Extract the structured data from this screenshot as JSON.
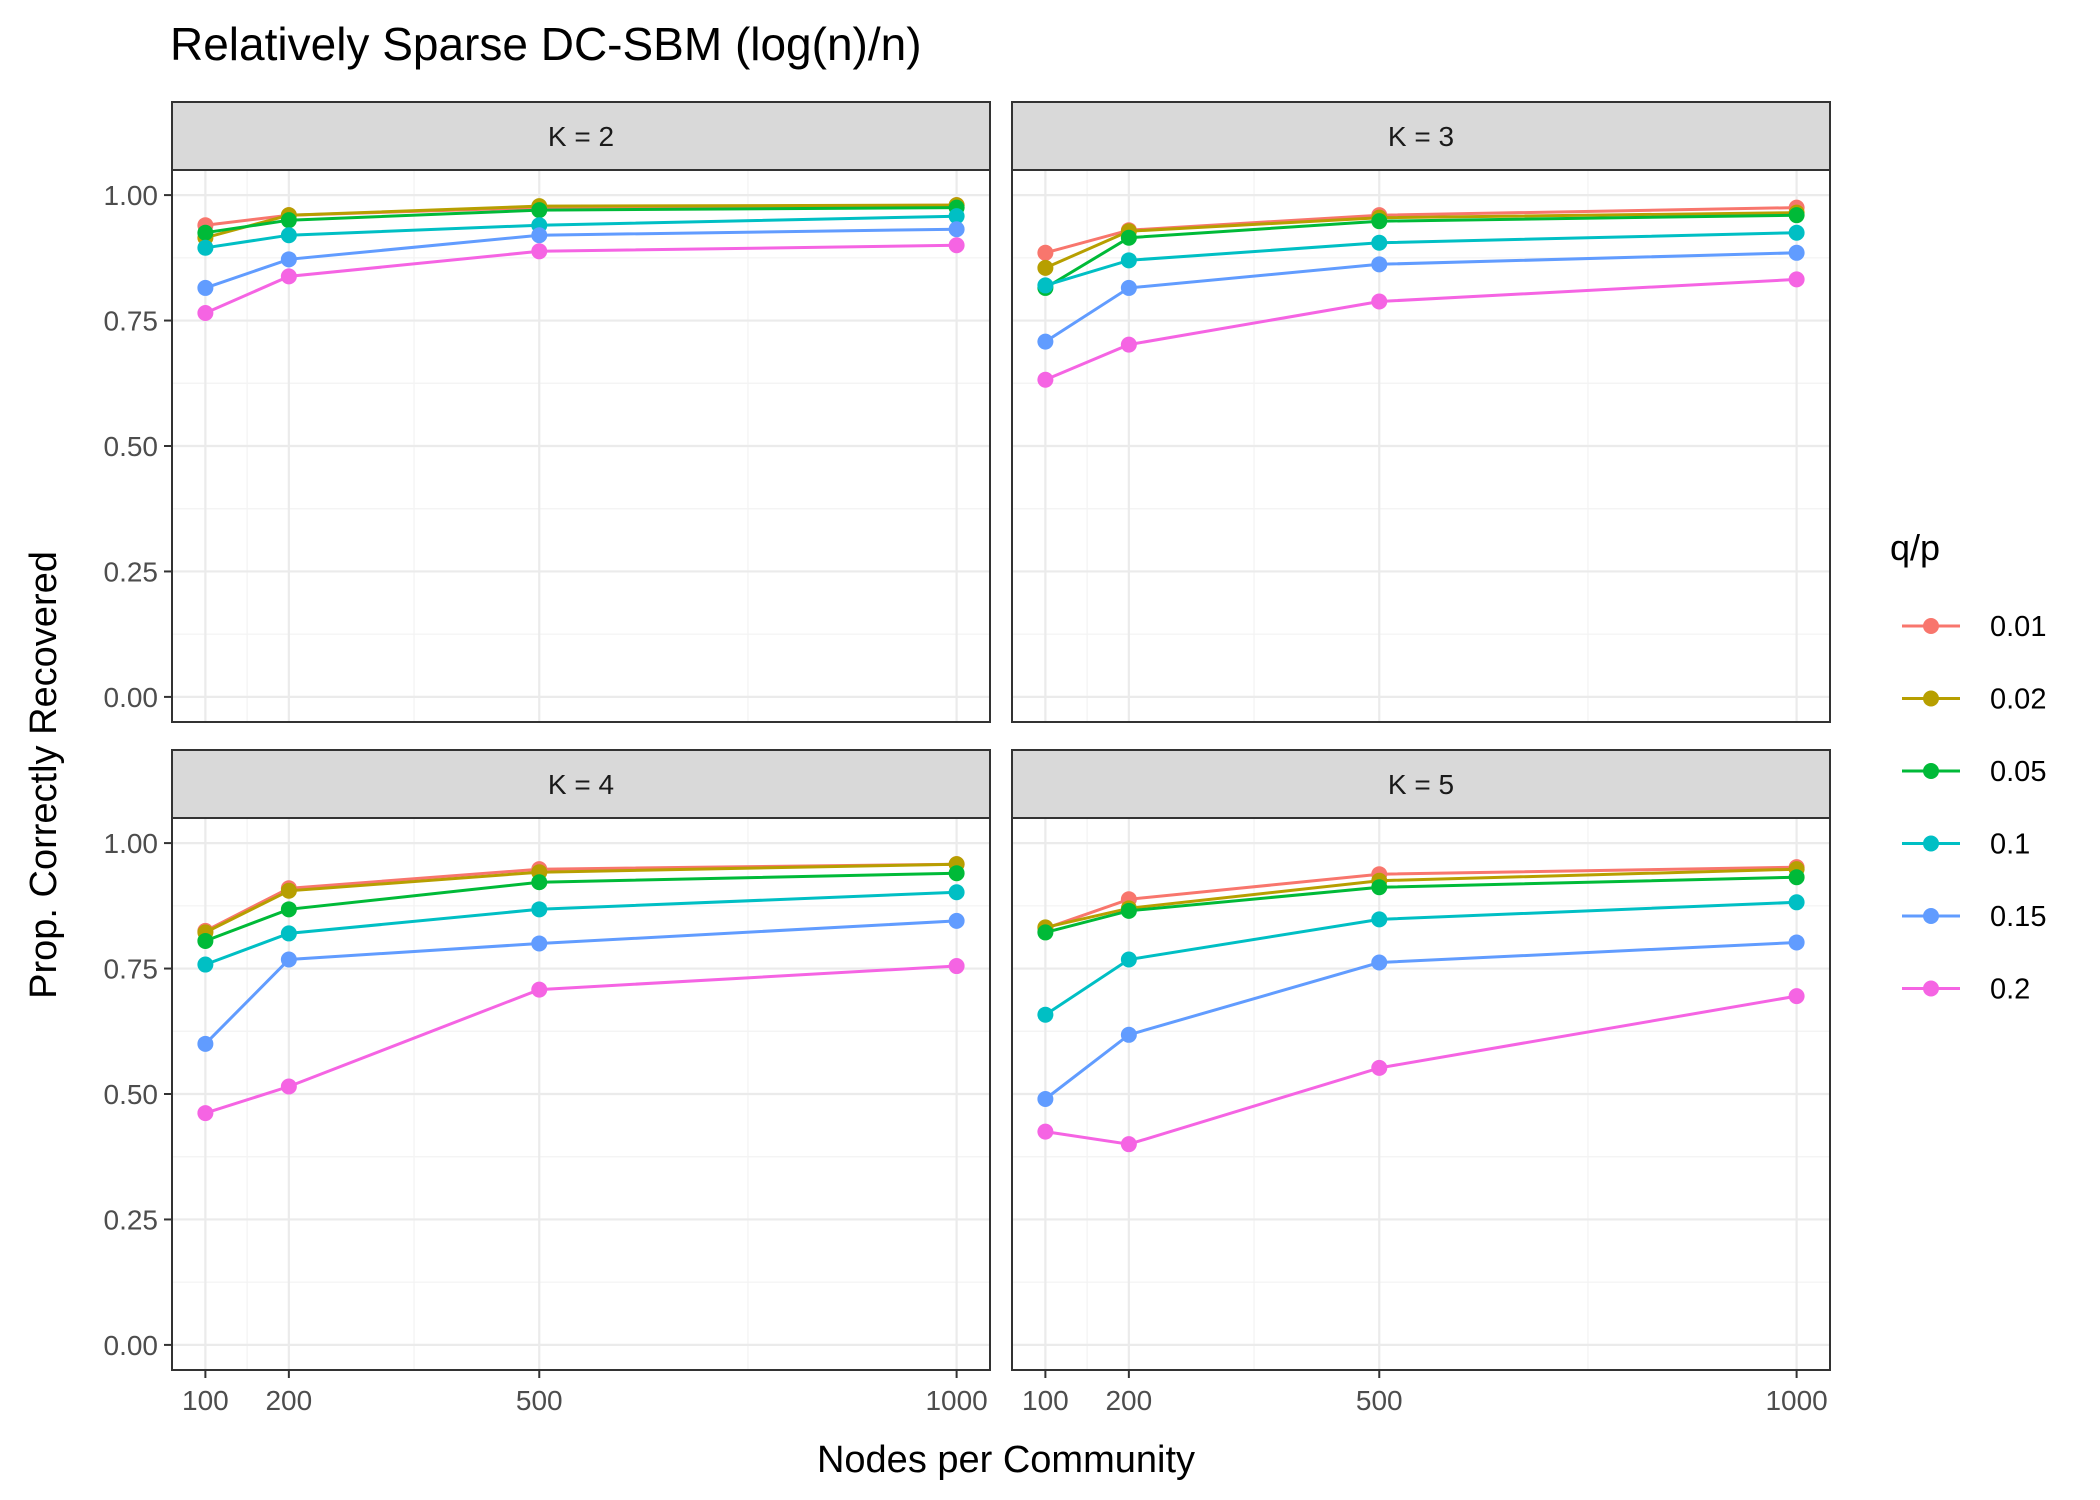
{
  "chart_data": {
    "type": "line",
    "title": "Relatively Sparse DC-SBM (log(n)/n)",
    "xlabel": "Nodes per Community",
    "ylabel": "Prop. Correctly Recovered",
    "x": [
      100,
      200,
      500,
      1000
    ],
    "x_ticks": [
      "100",
      "200",
      "500",
      "1000"
    ],
    "xlim": [
      60,
      1040
    ],
    "y_ticks": [
      "0.00",
      "0.25",
      "0.50",
      "0.75",
      "1.00"
    ],
    "y_tick_values": [
      0,
      0.25,
      0.5,
      0.75,
      1.0
    ],
    "ylim": [
      -0.05,
      1.05
    ],
    "grid": true,
    "legend": {
      "title": "q/p",
      "position": "right",
      "entries": [
        "0.01",
        "0.02",
        "0.05",
        "0.1",
        "0.15",
        "0.2"
      ],
      "colors": [
        "#F8766D",
        "#B79F00",
        "#00BA38",
        "#00BFC4",
        "#619CFF",
        "#F564E3"
      ]
    },
    "facets": [
      {
        "label": "K = 2",
        "series": [
          {
            "name": "0.01",
            "values": [
              0.94,
              0.96,
              0.975,
              0.98
            ]
          },
          {
            "name": "0.02",
            "values": [
              0.915,
              0.96,
              0.978,
              0.98
            ]
          },
          {
            "name": "0.05",
            "values": [
              0.925,
              0.95,
              0.97,
              0.975
            ]
          },
          {
            "name": "0.1",
            "values": [
              0.895,
              0.92,
              0.94,
              0.958
            ]
          },
          {
            "name": "0.15",
            "values": [
              0.815,
              0.872,
              0.92,
              0.932
            ]
          },
          {
            "name": "0.2",
            "values": [
              0.765,
              0.838,
              0.888,
              0.9
            ]
          }
        ]
      },
      {
        "label": "K = 3",
        "series": [
          {
            "name": "0.01",
            "values": [
              0.885,
              0.93,
              0.96,
              0.975
            ]
          },
          {
            "name": "0.02",
            "values": [
              0.855,
              0.928,
              0.955,
              0.965
            ]
          },
          {
            "name": "0.05",
            "values": [
              0.815,
              0.915,
              0.948,
              0.96
            ]
          },
          {
            "name": "0.1",
            "values": [
              0.82,
              0.87,
              0.905,
              0.925
            ]
          },
          {
            "name": "0.15",
            "values": [
              0.708,
              0.815,
              0.862,
              0.885
            ]
          },
          {
            "name": "0.2",
            "values": [
              0.632,
              0.702,
              0.788,
              0.832
            ]
          }
        ]
      },
      {
        "label": "K = 4",
        "series": [
          {
            "name": "0.01",
            "values": [
              0.825,
              0.91,
              0.948,
              0.958
            ]
          },
          {
            "name": "0.02",
            "values": [
              0.822,
              0.905,
              0.942,
              0.958
            ]
          },
          {
            "name": "0.05",
            "values": [
              0.805,
              0.868,
              0.922,
              0.94
            ]
          },
          {
            "name": "0.1",
            "values": [
              0.758,
              0.82,
              0.868,
              0.902
            ]
          },
          {
            "name": "0.15",
            "values": [
              0.6,
              0.768,
              0.8,
              0.845
            ]
          },
          {
            "name": "0.2",
            "values": [
              0.462,
              0.515,
              0.708,
              0.755
            ]
          }
        ]
      },
      {
        "label": "K = 5",
        "series": [
          {
            "name": "0.01",
            "values": [
              0.83,
              0.888,
              0.938,
              0.952
            ]
          },
          {
            "name": "0.02",
            "values": [
              0.832,
              0.87,
              0.925,
              0.948
            ]
          },
          {
            "name": "0.05",
            "values": [
              0.822,
              0.865,
              0.912,
              0.932
            ]
          },
          {
            "name": "0.1",
            "values": [
              0.658,
              0.768,
              0.848,
              0.882
            ]
          },
          {
            "name": "0.15",
            "values": [
              0.49,
              0.618,
              0.762,
              0.802
            ]
          },
          {
            "name": "0.2",
            "values": [
              0.425,
              0.4,
              0.552,
              0.695
            ]
          }
        ]
      }
    ]
  }
}
